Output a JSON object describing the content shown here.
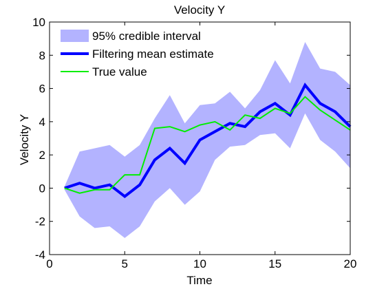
{
  "chart_data": {
    "type": "line",
    "title": "Velocity Y",
    "xlabel": "Time",
    "ylabel": "Velocity Y",
    "xlim": [
      0,
      20
    ],
    "ylim": [
      -4,
      10
    ],
    "xticks": [
      0,
      5,
      10,
      15,
      20
    ],
    "yticks": [
      -4,
      -2,
      0,
      2,
      4,
      6,
      8,
      10
    ],
    "grid": false,
    "legend_position": "top-left",
    "x": [
      1,
      2,
      3,
      4,
      5,
      6,
      7,
      8,
      9,
      10,
      11,
      12,
      13,
      14,
      15,
      16,
      17,
      18,
      19,
      20
    ],
    "band": {
      "name": "95% credible interval",
      "color": "#b3b3ff",
      "upper": [
        0.1,
        2.2,
        2.4,
        2.6,
        1.9,
        2.6,
        4.2,
        5.6,
        3.9,
        5.0,
        5.1,
        5.8,
        4.8,
        5.9,
        7.7,
        6.3,
        8.8,
        7.2,
        7.0,
        6.2
      ],
      "lower": [
        -0.1,
        -1.7,
        -2.4,
        -2.3,
        -3.0,
        -2.3,
        -0.8,
        0.0,
        -1.0,
        -0.2,
        1.7,
        2.5,
        2.6,
        3.2,
        3.3,
        2.4,
        4.5,
        2.9,
        2.2,
        1.2
      ]
    },
    "series": [
      {
        "name": "Filtering mean estimate",
        "color": "#0000ff",
        "width": 4,
        "values": [
          0.0,
          0.3,
          0.0,
          0.2,
          -0.5,
          0.2,
          1.7,
          2.4,
          1.5,
          2.9,
          3.4,
          3.9,
          3.7,
          4.6,
          5.1,
          4.4,
          6.2,
          5.1,
          4.6,
          3.7
        ]
      },
      {
        "name": "True value",
        "color": "#00ee00",
        "width": 2,
        "values": [
          0.0,
          -0.3,
          -0.1,
          -0.1,
          0.8,
          0.8,
          3.6,
          3.7,
          3.4,
          3.8,
          4.0,
          3.5,
          4.4,
          4.2,
          4.8,
          4.5,
          5.5,
          4.7,
          4.1,
          3.5
        ]
      }
    ]
  }
}
